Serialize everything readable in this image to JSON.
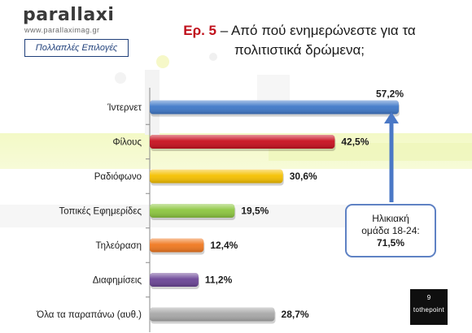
{
  "brand": {
    "name": "parallaxi",
    "url": "www.parallaximag.gr"
  },
  "badge": "Πολλαπλές Επιλογές",
  "title": {
    "prefix": "Ερ. 5",
    "dash": " – ",
    "line1": "Από πού ενημερώνεστε για τα",
    "line2": "πολιτιστικά δρώμενα;"
  },
  "callout": {
    "line1": "Ηλικιακή",
    "line2": "ομάδα 18-24:",
    "value": "71,5%"
  },
  "footer": {
    "page": "9",
    "brand": "tothepoint"
  },
  "chart_data": {
    "type": "bar",
    "orientation": "horizontal",
    "categories": [
      "Ίντερνετ",
      "Φίλους",
      "Ραδιόφωνο",
      "Τοπικές Εφημερίδες",
      "Τηλεόραση",
      "Διαφημίσεις",
      "Όλα τα παραπάνω (αυθ.)"
    ],
    "values": [
      57.2,
      42.5,
      30.6,
      19.5,
      12.4,
      11.2,
      28.7
    ],
    "value_labels": [
      "57,2%",
      "42,5%",
      "30,6%",
      "19,5%",
      "12,4%",
      "11,2%",
      "28,7%"
    ],
    "colors": [
      "#3f78c8",
      "#c8101e",
      "#f5c000",
      "#8cc63f",
      "#f07820",
      "#6b4596",
      "#a8a8a8"
    ],
    "xlim": [
      0,
      65
    ],
    "title": "",
    "xlabel": "",
    "ylabel": "",
    "grid": false
  }
}
